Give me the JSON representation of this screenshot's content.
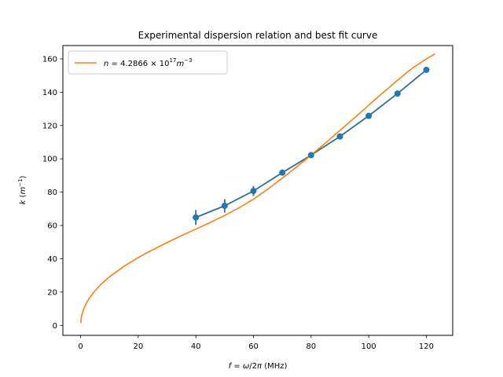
{
  "chart_data": {
    "type": "line",
    "title": "Experimental dispersion relation and best fit curve",
    "xlabel": "f = ω/2π (MHz)",
    "ylabel": "k (m⁻¹)",
    "xlim": [
      -6.15,
      129.15
    ],
    "ylim": [
      -6,
      168
    ],
    "xticks": [
      0,
      20,
      40,
      60,
      80,
      100,
      120
    ],
    "yticks": [
      0,
      20,
      40,
      60,
      80,
      100,
      120,
      140,
      160
    ],
    "grid": false,
    "legend_position": "top-left",
    "series": [
      {
        "kind": "errorbar",
        "color": "#2f6f94",
        "marker_color": "#1f77b4",
        "x": [
          40,
          50,
          60,
          70,
          80,
          90,
          100,
          110,
          120
        ],
        "y": [
          64.8,
          71.8,
          80.7,
          91.7,
          102.2,
          113.4,
          125.8,
          139.2,
          153.4
        ],
        "yerr": [
          4.5,
          4.0,
          3.0,
          1.5,
          1.2,
          1.0,
          1.0,
          1.0,
          1.0
        ]
      },
      {
        "kind": "fit",
        "name": "n = 4.2866 × 10^17 m^-3",
        "color": "#ff7f0e",
        "x": [
          0.05,
          0.3,
          1,
          2,
          3,
          5,
          7,
          10,
          15,
          20,
          25,
          30,
          35,
          40,
          45,
          50,
          55,
          60,
          65,
          70,
          75,
          80,
          85,
          90,
          95,
          100,
          105,
          110,
          115,
          120,
          123
        ],
        "y": [
          1.4,
          5.3,
          9.6,
          13.4,
          16.3,
          20.8,
          24.6,
          29.1,
          35.4,
          40.7,
          45.4,
          49.7,
          53.9,
          57.8,
          61.8,
          66.0,
          70.6,
          75.8,
          81.8,
          88.4,
          95.2,
          102.2,
          109.5,
          117.0,
          124.5,
          132.2,
          139.8,
          147.2,
          154.2,
          160.0,
          163.0
        ]
      }
    ]
  }
}
